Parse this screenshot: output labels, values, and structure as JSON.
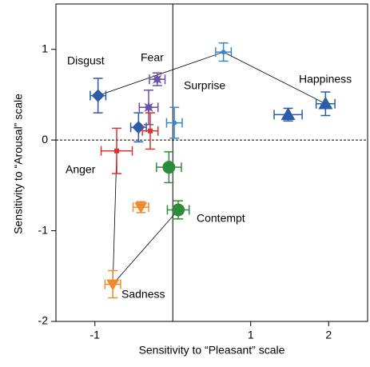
{
  "chart_data": {
    "type": "scatter",
    "xlabel": "Sensitivity to “Pleasant” scale",
    "ylabel": "Sensitivity to “Arousal” scale",
    "xlim": [
      -1.5,
      2.5
    ],
    "ylim": [
      -2,
      1.5
    ],
    "xticks": [
      -1,
      1,
      2
    ],
    "yticks": [
      -2,
      -1,
      0,
      1
    ],
    "annotations": [
      "Disgust",
      "Fear",
      "Surprise",
      "Happiness",
      "Anger",
      "Contempt",
      "Sadness"
    ],
    "series": [
      {
        "color": "#2a5ca8",
        "marker": "diamond",
        "marker_size": 8,
        "x": [
          -0.96,
          -0.44
        ],
        "values": [
          0.49,
          0.14
        ],
        "xerr": [
          0.1,
          0.1
        ],
        "yerr": [
          0.19,
          0.16
        ]
      },
      {
        "color": "#6a4fa8",
        "marker": "star",
        "marker_size": 8,
        "x": [
          -0.2,
          -0.31
        ],
        "values": [
          0.67,
          0.36
        ],
        "xerr": [
          0.1,
          0.12
        ],
        "yerr": [
          0.07,
          0.19
        ]
      },
      {
        "color": "#3a86c8",
        "marker": "circle",
        "marker_size": 3,
        "x": [
          0.65,
          0.02
        ],
        "values": [
          0.97,
          0.19
        ],
        "xerr": [
          0.1,
          0.1
        ],
        "yerr": [
          0.1,
          0.17
        ]
      },
      {
        "color": "#2a5ca8",
        "marker": "triangle-up",
        "marker_size": 9,
        "x": [
          1.96,
          1.48
        ],
        "values": [
          0.4,
          0.28
        ],
        "xerr": [
          0.12,
          0.18
        ],
        "yerr": [
          0.13,
          0.07
        ]
      },
      {
        "color": "#e03030",
        "marker": "square",
        "marker_size": 3,
        "x": [
          -0.72,
          -0.29
        ],
        "values": [
          -0.12,
          0.1
        ],
        "xerr": [
          0.2,
          0.1
        ],
        "yerr": [
          0.25,
          0.2
        ]
      },
      {
        "color": "#2e8b3a",
        "marker": "circle",
        "marker_size": 8,
        "x": [
          -0.05,
          0.07
        ],
        "values": [
          -0.3,
          -0.77
        ],
        "xerr": [
          0.16,
          0.14
        ],
        "yerr": [
          0.17,
          0.1
        ]
      },
      {
        "color": "#f08a30",
        "marker": "triangle-down",
        "marker_size": 8,
        "x": [
          -0.41,
          -0.77
        ],
        "values": [
          -0.74,
          -1.59
        ],
        "xerr": [
          0.1,
          0.1
        ],
        "yerr": [
          0.06,
          0.15
        ]
      }
    ]
  }
}
